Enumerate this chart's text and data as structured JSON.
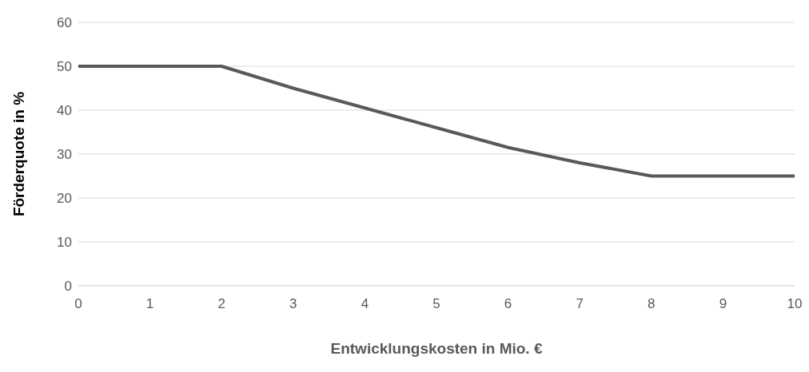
{
  "chart_data": {
    "type": "line",
    "xlabel": "Entwicklungskosten in Mio. €",
    "ylabel": "Förderquote in %",
    "categories": [
      "0",
      "1",
      "2",
      "3",
      "4",
      "5",
      "6",
      "7",
      "8",
      "9",
      "10"
    ],
    "series": [
      {
        "color": "#595959",
        "values": [
          50,
          50,
          50,
          45,
          40.5,
          36,
          31.5,
          28,
          25,
          25,
          25
        ]
      }
    ],
    "ylim": [
      0,
      60
    ],
    "yticks": [
      0,
      10,
      20,
      30,
      40,
      50,
      60
    ],
    "grid": "y",
    "legend": false,
    "marker": "none",
    "line_style": "solid"
  }
}
